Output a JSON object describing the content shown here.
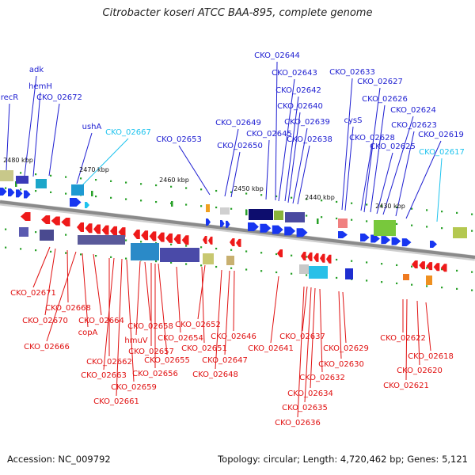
{
  "title": "Citrobacter koseri ATCC BAA-895, complete genome",
  "accession": "Accession: NC_009792",
  "summary": "Topology: circular; Length: 4,720,462 bp; Genes: 5,121",
  "colors": {
    "upper_label": "#1d1dd1",
    "highlight_label": "#1ec3ee",
    "lower_label": "#e01010",
    "backbone": "#8a8a8a",
    "gene_blue": "#1836f0",
    "gene_red": "#ee1a1a",
    "tick_green": "#27a027"
  },
  "scale_ticks": [
    "2480 kbp",
    "2470 kbp",
    "2460 kbp",
    "2450 kbp",
    "2440 kbp",
    "2430 kbp"
  ],
  "upper_labels": [
    "recR",
    "adk",
    "hemH",
    "CKO_02672",
    "ushA",
    "CKO_02667",
    "CKO_02653",
    "CKO_02649",
    "CKO_02650",
    "CKO_02645",
    "CKO_02644",
    "CKO_02643",
    "CKO_02642",
    "CKO_02640",
    "CKO_02639",
    "CKO_02638",
    "CKO_02633",
    "cysS",
    "CKO_02628",
    "CKO_02627",
    "CKO_02626",
    "CKO_02625",
    "CKO_02624",
    "CKO_02623",
    "CKO_02619",
    "CKO_02617"
  ],
  "lower_labels": [
    "CKO_02671",
    "CKO_02668",
    "CKO_02670",
    "copA",
    "CKO_02666",
    "CKO_02664",
    "CKO_02662",
    "CKO_02663",
    "CKO_02658",
    "hmuV",
    "CKO_02657",
    "CKO_02655",
    "CKO_02656",
    "CKO_02659",
    "CKO_02661",
    "CKO_02652",
    "CKO_02654",
    "CKO_02651",
    "CKO_02646",
    "CKO_02647",
    "CKO_02648",
    "CKO_02641",
    "CKO_02637",
    "CKO_02629",
    "CKO_02630",
    "CKO_02632",
    "CKO_02634",
    "CKO_02635",
    "CKO_02636",
    "CKO_02622",
    "CKO_02618",
    "CKO_02620",
    "CKO_02621"
  ]
}
